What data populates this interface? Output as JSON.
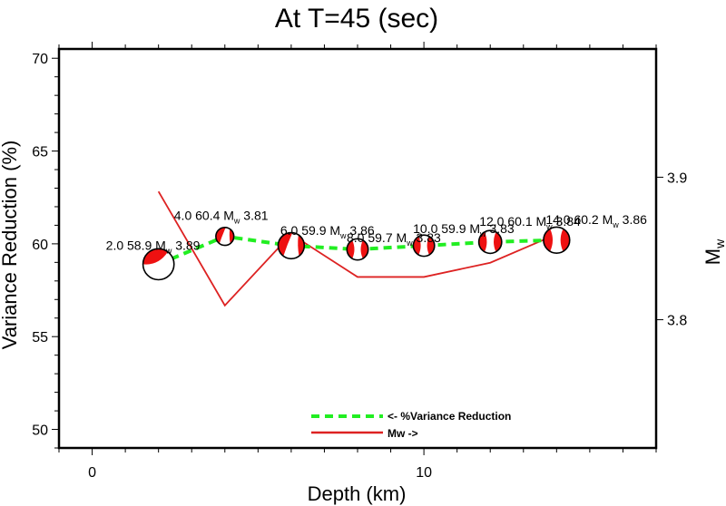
{
  "chart_data": {
    "type": "line",
    "title": "At T=45 (sec)",
    "xlabel": "Depth (km)",
    "ylabel": "Variance Reduction (%)",
    "y2label_main": "M",
    "y2label_sub": "w",
    "xlim": [
      -1,
      17
    ],
    "ylim": [
      49,
      70.5
    ],
    "y2lim": [
      3.71,
      3.99
    ],
    "x_ticks": [
      0,
      10
    ],
    "x_tick_labels": [
      "0",
      "10"
    ],
    "x_minor_step": 1,
    "y_ticks": [
      50,
      55,
      60,
      65,
      70
    ],
    "y_tick_labels": [
      "50",
      "55",
      "60",
      "65",
      "70"
    ],
    "y_minor_step": 1,
    "y2_ticks": [
      3.8,
      3.9
    ],
    "y2_tick_labels": [
      "3.8",
      "3.9"
    ],
    "grid": false,
    "legend_position": "bottom-center",
    "series": [
      {
        "name": "<- %Variance Reduction",
        "axis": "left",
        "style": "dashed",
        "color": "#22ee22",
        "x": [
          2,
          4,
          6,
          8,
          10,
          12,
          14
        ],
        "values": [
          58.9,
          60.4,
          59.9,
          59.7,
          59.9,
          60.1,
          60.2
        ]
      },
      {
        "name": "Mw ->",
        "axis": "right",
        "style": "solid",
        "color": "#dd2222",
        "x": [
          2,
          4,
          6,
          8,
          10,
          12,
          14
        ],
        "values": [
          3.89,
          3.81,
          3.86,
          3.83,
          3.83,
          3.84,
          3.86
        ]
      }
    ],
    "annotations": [
      {
        "depth": "2.0",
        "vr": "58.9",
        "mw": "3.89"
      },
      {
        "depth": "4.0",
        "vr": "60.4",
        "mw": "3.81"
      },
      {
        "depth": "6.0",
        "vr": "59.9",
        "mw": "3.86"
      },
      {
        "depth": "8.0",
        "vr": "59.7",
        "mw": "3.83"
      },
      {
        "depth": "10.0",
        "vr": "59.9",
        "mw": "3.83"
      },
      {
        "depth": "12.0",
        "vr": "60.1",
        "mw": "3.84"
      },
      {
        "depth": "14.0",
        "vr": "60.2",
        "mw": "3.86"
      }
    ],
    "markers": {
      "type": "focal-mechanism-beachball",
      "fill_color": "#ee1111",
      "background_color": "#ffffff",
      "outline_color": "#000000"
    }
  }
}
